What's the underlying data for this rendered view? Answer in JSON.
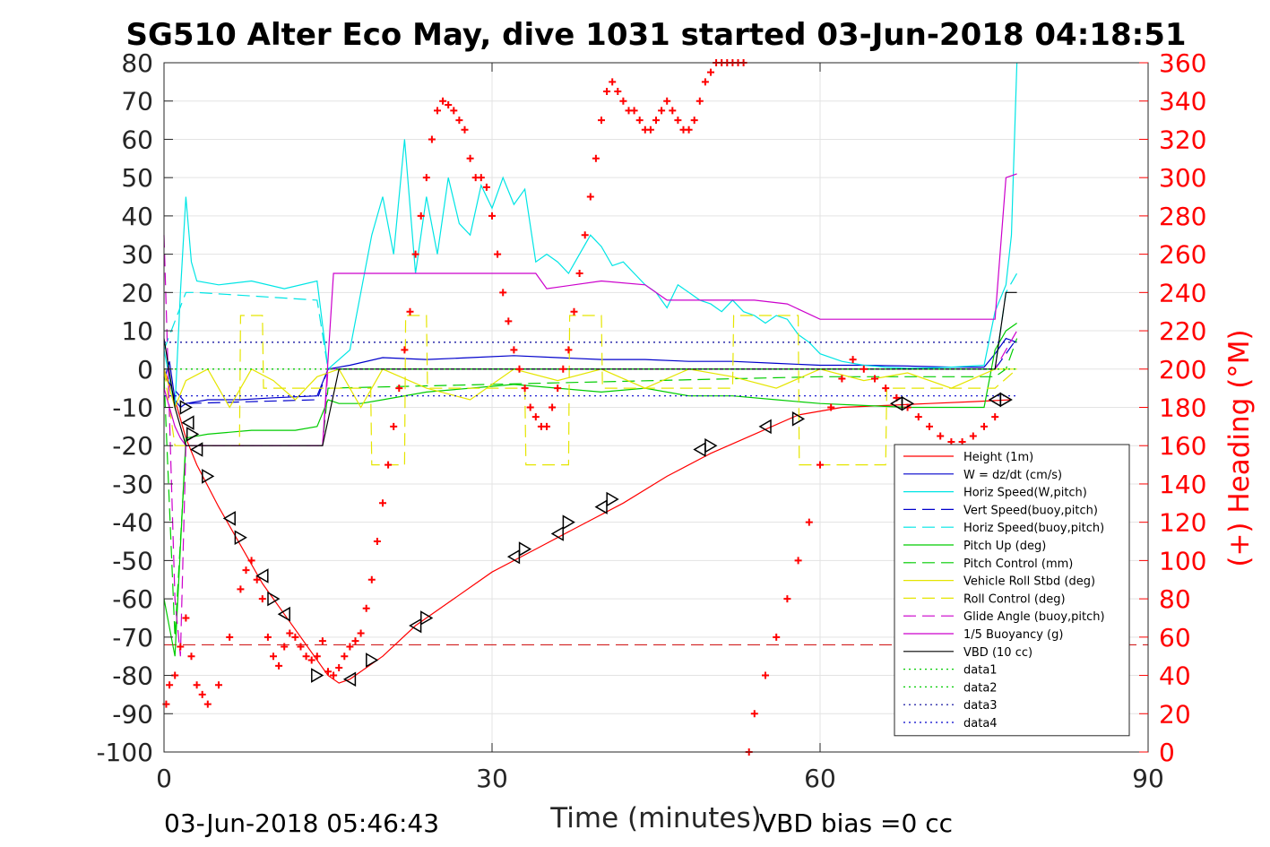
{
  "chart_data": {
    "type": "line",
    "title": "SG510 Alter Eco May, dive 1031 started 03-Jun-2018 04:18:51",
    "xlabel": "Time (minutes)",
    "ylabel_right": "(+) Heading (°M)",
    "footer_left": "03-Jun-2018 05:46:43",
    "footer_right": "VBD bias =0 cc",
    "xlim": [
      0,
      90
    ],
    "ylim": [
      -100,
      80
    ],
    "ylim_right": [
      0,
      360
    ],
    "x_ticks": [
      "0",
      "30",
      "60",
      "90"
    ],
    "y_ticks": [
      "80",
      "70",
      "60",
      "50",
      "40",
      "30",
      "20",
      "10",
      "0",
      "-10",
      "-20",
      "-30",
      "-40",
      "-50",
      "-60",
      "-70",
      "-80",
      "-90",
      "-100"
    ],
    "y_right_ticks": [
      "360",
      "340",
      "320",
      "300",
      "280",
      "260",
      "240",
      "220",
      "200",
      "180",
      "160",
      "140",
      "120",
      "100",
      "80",
      "60",
      "40",
      "20",
      "0"
    ],
    "grid": true,
    "legend_position": "bottom-right",
    "legend": [
      {
        "label": "Height (1m)",
        "color": "#ff0000",
        "dash": "solid"
      },
      {
        "label": "W = dz/dt (cm/s)",
        "color": "#0000cc",
        "dash": "solid"
      },
      {
        "label": "Horiz Speed(W,pitch)",
        "color": "#00e5e5",
        "dash": "solid"
      },
      {
        "label": "Vert Speed(buoy,pitch)",
        "color": "#0000cc",
        "dash": "dashed"
      },
      {
        "label": "Horiz Speed(buoy,pitch)",
        "color": "#00e5e5",
        "dash": "dashed"
      },
      {
        "label": "Pitch Up (deg)",
        "color": "#00cc00",
        "dash": "solid"
      },
      {
        "label": "Pitch Control (mm)",
        "color": "#00cc00",
        "dash": "dashed"
      },
      {
        "label": "Vehicle Roll Stbd (deg)",
        "color": "#e5e500",
        "dash": "solid"
      },
      {
        "label": "Roll Control (deg)",
        "color": "#e5e500",
        "dash": "dashed"
      },
      {
        "label": "Glide Angle (buoy,pitch)",
        "color": "#cc00cc",
        "dash": "dashed"
      },
      {
        "label": "1/5 Buoyancy (g)",
        "color": "#cc00cc",
        "dash": "solid"
      },
      {
        "label": "VBD (10 cc)",
        "color": "#000000",
        "dash": "solid"
      },
      {
        "label": "data1",
        "color": "#00cc00",
        "dash": "dotted"
      },
      {
        "label": "data2",
        "color": "#00cc00",
        "dash": "dotted"
      },
      {
        "label": "data3",
        "color": "#000099",
        "dash": "dotted"
      },
      {
        "label": "data4",
        "color": "#0000cc",
        "dash": "dotted"
      }
    ],
    "series": [
      {
        "name": "Height (1m)",
        "color": "#ff0000",
        "dash": "solid",
        "x": [
          0,
          1,
          2,
          3,
          5,
          7,
          9,
          11,
          13,
          15,
          16,
          17,
          18,
          20,
          23,
          26,
          30,
          34,
          38,
          42,
          46,
          50,
          54,
          58,
          62,
          66,
          70,
          74,
          77.5
        ],
        "y": [
          0,
          -8,
          -18,
          -25,
          -36,
          -46,
          -56,
          -64,
          -72,
          -80,
          -82,
          -81,
          -79,
          -75,
          -67,
          -61,
          -53,
          -47,
          -41,
          -35,
          -28,
          -22,
          -17,
          -12,
          -10,
          -9.5,
          -9,
          -8.5,
          -8
        ]
      },
      {
        "name": "W = dz/dt (cm/s)",
        "color": "#0000cc",
        "dash": "solid",
        "x": [
          0,
          0.5,
          1,
          1.5,
          2,
          4,
          7,
          10,
          14,
          15,
          17,
          20,
          24,
          28,
          32,
          36,
          40,
          44,
          48,
          52,
          56,
          60,
          64,
          68,
          72,
          75,
          76,
          77,
          78
        ],
        "y": [
          -3,
          2,
          -8,
          -10,
          -9,
          -8,
          -8,
          -7.5,
          -7,
          0,
          1,
          3,
          2.5,
          3,
          3.5,
          3,
          2.5,
          2.5,
          2,
          2,
          1.5,
          1,
          1,
          0.8,
          0.5,
          0.5,
          4,
          8,
          7
        ]
      },
      {
        "name": "Horiz Speed(W,pitch)",
        "color": "#00e5e5",
        "dash": "solid",
        "x": [
          0,
          1,
          1.5,
          2,
          2.5,
          3,
          5,
          8,
          11,
          14,
          15,
          17,
          18,
          19,
          20,
          21,
          22,
          23,
          24,
          25,
          26,
          27,
          28,
          29,
          30,
          31,
          32,
          33,
          34,
          35,
          36,
          37,
          38,
          39,
          40,
          41,
          42,
          43,
          44,
          45,
          46,
          47,
          48,
          49,
          50,
          51,
          52,
          53,
          54,
          55,
          56,
          57,
          58,
          59,
          60,
          62,
          64,
          66,
          68,
          70,
          72,
          75,
          76,
          77,
          77.5,
          78
        ],
        "y": [
          5,
          -10,
          20,
          45,
          28,
          23,
          22,
          23,
          21,
          23,
          0,
          5,
          20,
          35,
          45,
          30,
          60,
          25,
          45,
          30,
          50,
          38,
          35,
          48,
          42,
          50,
          43,
          47,
          28,
          30,
          28,
          25,
          30,
          35,
          32,
          27,
          28,
          25,
          22,
          20,
          16,
          22,
          20,
          18,
          17,
          15,
          18,
          15,
          14,
          12,
          14,
          13,
          9,
          7,
          4,
          2,
          1,
          0.5,
          0.2,
          0.3,
          0.5,
          1,
          15,
          22,
          35,
          80
        ]
      },
      {
        "name": "Vert Speed(buoy,pitch)",
        "color": "#0000cc",
        "dash": "dashed",
        "x": [
          0,
          2,
          14,
          15,
          76,
          78
        ],
        "y": [
          -2,
          -9,
          -8,
          0,
          0,
          8
        ]
      },
      {
        "name": "Horiz Speed(buoy,pitch)",
        "color": "#00e5e5",
        "dash": "dashed",
        "x": [
          0,
          2,
          3,
          14,
          15,
          76,
          77,
          78
        ],
        "y": [
          5,
          20,
          20,
          18,
          0,
          0,
          20,
          25
        ]
      },
      {
        "name": "Pitch Up (deg)",
        "color": "#00cc00",
        "dash": "solid",
        "x": [
          0,
          1,
          2,
          4,
          8,
          12,
          14,
          15,
          16,
          18,
          20,
          24,
          28,
          32,
          36,
          40,
          44,
          48,
          52,
          56,
          60,
          64,
          68,
          72,
          75,
          76,
          77,
          78
        ],
        "y": [
          -60,
          -75,
          -18,
          -17,
          -16,
          -16,
          -15,
          -8,
          -9,
          -9,
          -8,
          -6,
          -5,
          -4,
          -5,
          -6,
          -5,
          -7,
          -7,
          -8,
          -9,
          -9.5,
          -10,
          -10,
          -10,
          5,
          10,
          12
        ]
      },
      {
        "name": "Pitch Control (mm)",
        "color": "#00cc00",
        "dash": "dashed",
        "x": [
          0,
          1,
          2,
          14.5,
          15,
          60,
          76,
          77,
          78
        ],
        "y": [
          -2,
          -70,
          -20,
          -20,
          -5,
          -2,
          -2,
          0,
          8
        ]
      },
      {
        "name": "Vehicle Roll Stbd (deg)",
        "color": "#e5e500",
        "dash": "solid",
        "x": [
          0,
          1,
          2,
          4,
          6,
          8,
          10,
          12,
          14,
          16,
          18,
          20,
          24,
          28,
          32,
          36,
          40,
          44,
          48,
          52,
          56,
          60,
          64,
          68,
          72,
          76,
          78
        ],
        "y": [
          0,
          -10,
          -3,
          0,
          -10,
          0,
          -3,
          -8,
          -2,
          0,
          -10,
          0,
          -5,
          -8,
          0,
          -3,
          0,
          -5,
          0,
          -2,
          -5,
          0,
          -3,
          -1,
          -5,
          0,
          0
        ]
      },
      {
        "name": "Roll Control (deg)",
        "color": "#e5e500",
        "dash": "dashed",
        "x": [
          0,
          1,
          3,
          6.9,
          7,
          9,
          9.1,
          12,
          14,
          18.9,
          19,
          22,
          22.1,
          24,
          24.1,
          33,
          33.1,
          37,
          37.1,
          40,
          40.1,
          52,
          52.1,
          58,
          58.1,
          66,
          66.1,
          76,
          78
        ],
        "y": [
          0,
          -20,
          -20,
          -20,
          14,
          14,
          -5,
          -5,
          -5,
          -5,
          -25,
          -25,
          14,
          14,
          -5,
          -5,
          -25,
          -25,
          14,
          14,
          -5,
          -5,
          14,
          14,
          -25,
          -25,
          -5,
          -5,
          0
        ]
      },
      {
        "name": "Glide Angle (buoy,pitch)",
        "color": "#cc00cc",
        "dash": "dashed",
        "x": [
          0,
          1,
          1.5,
          2,
          14.5,
          15,
          60,
          76,
          78
        ],
        "y": [
          35,
          -60,
          -75,
          -20,
          -20,
          0,
          0,
          0,
          10
        ]
      },
      {
        "name": "1/5 Buoyancy (g)",
        "color": "#cc00cc",
        "dash": "solid",
        "x": [
          0,
          0.5,
          1,
          1.5,
          2,
          14.5,
          15.5,
          18,
          30,
          34,
          35,
          40,
          44,
          46,
          50,
          54,
          57,
          60,
          70,
          76,
          77,
          78
        ],
        "y": [
          -5,
          -10,
          -15,
          -18,
          -20,
          -20,
          25,
          25,
          25,
          25,
          21,
          23,
          22,
          18,
          18,
          18,
          17,
          13,
          13,
          13,
          50,
          51
        ]
      },
      {
        "name": "VBD (10 cc)",
        "color": "#000000",
        "dash": "solid",
        "x": [
          0,
          1,
          2,
          4,
          14.5,
          16,
          60,
          76,
          77,
          78
        ],
        "y": [
          8,
          -10,
          -20,
          -20,
          -20,
          0,
          0,
          0,
          20,
          20
        ]
      },
      {
        "name": "data1",
        "color": "#00cc00",
        "dash": "dotted",
        "x": [
          0,
          78
        ],
        "y": [
          0,
          0
        ]
      },
      {
        "name": "data2",
        "color": "#00cc00",
        "dash": "dotted",
        "x": [
          0,
          78
        ],
        "y": [
          0,
          0
        ]
      },
      {
        "name": "data3",
        "color": "#000099",
        "dash": "dotted",
        "x": [
          0,
          78
        ],
        "y": [
          7,
          7
        ]
      },
      {
        "name": "data4",
        "color": "#0000cc",
        "dash": "dotted",
        "x": [
          0,
          78
        ],
        "y": [
          -7,
          -7
        ]
      }
    ],
    "heading_reference": {
      "y_left": -72,
      "color": "#cc0000",
      "dash": "dashed"
    },
    "heading_markers": {
      "name": "Heading (°M)",
      "marker": "+",
      "color": "#ff0000",
      "x": [
        0.2,
        0.5,
        1,
        1.5,
        2,
        2.5,
        3,
        3.5,
        4,
        5,
        6,
        7,
        7.5,
        8,
        8.5,
        9,
        9.5,
        10,
        10.5,
        11,
        11.5,
        12,
        12.5,
        13,
        13.5,
        14,
        14.5,
        15,
        15.5,
        16,
        16.5,
        17,
        17.5,
        18,
        18.5,
        19,
        19.5,
        20,
        20.5,
        21,
        21.5,
        22,
        22.5,
        23,
        23.5,
        24,
        24.5,
        25,
        25.5,
        26,
        26.5,
        27,
        27.5,
        28,
        28.5,
        29,
        29.5,
        30,
        30.5,
        31,
        31.5,
        32,
        32.5,
        33,
        33.5,
        34,
        34.5,
        35,
        35.5,
        36,
        36.5,
        37,
        37.5,
        38,
        38.5,
        39,
        39.5,
        40,
        40.5,
        41,
        41.5,
        42,
        42.5,
        43,
        43.5,
        44,
        44.5,
        45,
        45.5,
        46,
        46.5,
        47,
        47.5,
        48,
        48.5,
        49,
        49.5,
        50,
        50.5,
        51,
        51.5,
        52,
        52.5,
        53,
        53.5,
        54,
        55,
        56,
        57,
        58,
        59,
        60,
        61,
        62,
        63,
        64,
        65,
        66,
        67,
        68,
        69,
        70,
        71,
        72,
        73,
        74,
        75,
        76
      ],
      "y": [
        25,
        35,
        40,
        55,
        70,
        50,
        35,
        30,
        25,
        35,
        60,
        85,
        95,
        100,
        90,
        80,
        60,
        50,
        45,
        55,
        62,
        60,
        55,
        50,
        48,
        50,
        58,
        42,
        40,
        44,
        50,
        55,
        58,
        62,
        75,
        90,
        110,
        130,
        150,
        170,
        190,
        210,
        230,
        260,
        280,
        300,
        320,
        335,
        340,
        338,
        335,
        330,
        325,
        310,
        300,
        300,
        295,
        280,
        260,
        240,
        225,
        210,
        200,
        190,
        180,
        175,
        170,
        170,
        180,
        190,
        200,
        210,
        230,
        250,
        270,
        290,
        310,
        330,
        345,
        350,
        345,
        340,
        335,
        335,
        330,
        325,
        325,
        330,
        335,
        340,
        335,
        330,
        325,
        325,
        330,
        340,
        350,
        355,
        360,
        360,
        360,
        360,
        360,
        360,
        0,
        20,
        40,
        60,
        80,
        100,
        120,
        150,
        180,
        195,
        205,
        200,
        195,
        190,
        185,
        180,
        175,
        170,
        165,
        162,
        162,
        165,
        170,
        175
      ]
    },
    "direction_markers": {
      "name": "Height markers",
      "marker": "triangle",
      "color": "#000000",
      "x": [
        2,
        2.2,
        2.6,
        3,
        4,
        6,
        7,
        9,
        10,
        11,
        14,
        17,
        19,
        23,
        24,
        32,
        33,
        36,
        37,
        40,
        41,
        49,
        50,
        55,
        58,
        67,
        68,
        76,
        77
      ],
      "y": [
        -10,
        -14,
        -17,
        -21,
        -28,
        -39,
        -44,
        -54,
        -60,
        -64,
        -80,
        -81,
        -76,
        -67,
        -65,
        -49,
        -47,
        -43,
        -40,
        -36,
        -34,
        -21,
        -20,
        -15,
        -13,
        -9,
        -9,
        -8,
        -8
      ]
    }
  }
}
